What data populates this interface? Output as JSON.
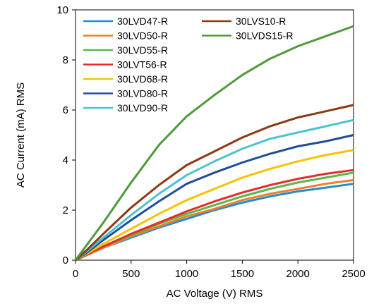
{
  "chart_data": {
    "type": "line",
    "xlabel": "AC Voltage (V) RMS",
    "ylabel": "AC Current (mA) RMS",
    "xlim": [
      0,
      2500
    ],
    "ylim": [
      0,
      10
    ],
    "xticks": [
      "0",
      "500",
      "1000",
      "1500",
      "2000",
      "2500"
    ],
    "yticks": [
      "0",
      "2",
      "4",
      "6",
      "8",
      "10"
    ],
    "grid": false,
    "legend_placement": "top-left, two columns",
    "series": [
      {
        "name": "30LVD47-R",
        "color": "#1f8fd0",
        "x": [
          0,
          100,
          250,
          500,
          750,
          1000,
          1250,
          1500,
          1750,
          2000,
          2250,
          2500
        ],
        "y": [
          0,
          0.2,
          0.5,
          0.9,
          1.3,
          1.65,
          2.0,
          2.3,
          2.55,
          2.75,
          2.9,
          3.05
        ]
      },
      {
        "name": "30LVD50-R",
        "color": "#f07d2a",
        "x": [
          0,
          100,
          250,
          500,
          750,
          1000,
          1250,
          1500,
          1750,
          2000,
          2250,
          2500
        ],
        "y": [
          0,
          0.2,
          0.5,
          0.95,
          1.35,
          1.75,
          2.05,
          2.4,
          2.65,
          2.85,
          3.05,
          3.2
        ]
      },
      {
        "name": "30LVD55-R",
        "color": "#57b947",
        "x": [
          0,
          100,
          250,
          500,
          750,
          1000,
          1250,
          1500,
          1750,
          2000,
          2250,
          2500
        ],
        "y": [
          0,
          0.22,
          0.55,
          1.0,
          1.45,
          1.85,
          2.2,
          2.55,
          2.85,
          3.1,
          3.3,
          3.5
        ]
      },
      {
        "name": "30LVT56-R",
        "color": "#e52b2b",
        "x": [
          0,
          100,
          250,
          500,
          750,
          1000,
          1250,
          1500,
          1750,
          2000,
          2250,
          2500
        ],
        "y": [
          0,
          0.22,
          0.55,
          1.05,
          1.5,
          1.95,
          2.35,
          2.7,
          3.0,
          3.25,
          3.45,
          3.6
        ]
      },
      {
        "name": "30LVD68-R",
        "color": "#f5c400",
        "x": [
          0,
          100,
          250,
          500,
          750,
          1000,
          1250,
          1500,
          1750,
          2000,
          2250,
          2500
        ],
        "y": [
          0,
          0.25,
          0.65,
          1.25,
          1.85,
          2.4,
          2.85,
          3.3,
          3.65,
          3.95,
          4.2,
          4.4
        ]
      },
      {
        "name": "30LVD80-R",
        "color": "#1f4e99",
        "x": [
          0,
          100,
          250,
          500,
          750,
          1000,
          1250,
          1500,
          1750,
          2000,
          2250,
          2500
        ],
        "y": [
          0,
          0.3,
          0.8,
          1.6,
          2.35,
          3.05,
          3.5,
          3.9,
          4.25,
          4.55,
          4.75,
          5.0
        ]
      },
      {
        "name": "30LVD90-R",
        "color": "#4cc3d1",
        "x": [
          0,
          100,
          250,
          500,
          750,
          1000,
          1250,
          1500,
          1750,
          2000,
          2250,
          2500
        ],
        "y": [
          0,
          0.35,
          0.9,
          1.8,
          2.65,
          3.4,
          3.95,
          4.45,
          4.85,
          5.1,
          5.35,
          5.6
        ]
      },
      {
        "name": "30LVS10-R",
        "color": "#8b3a14",
        "x": [
          0,
          100,
          250,
          500,
          750,
          1000,
          1250,
          1500,
          1750,
          2000,
          2250,
          2500
        ],
        "y": [
          0,
          0.4,
          1.05,
          2.1,
          3.0,
          3.8,
          4.35,
          4.9,
          5.35,
          5.7,
          5.95,
          6.2
        ]
      },
      {
        "name": "30LVDS15-R",
        "color": "#4f9a3a",
        "x": [
          0,
          100,
          250,
          500,
          750,
          1000,
          1250,
          1500,
          1750,
          2000,
          2250,
          2500
        ],
        "y": [
          0,
          0.6,
          1.5,
          3.1,
          4.6,
          5.75,
          6.6,
          7.4,
          8.05,
          8.55,
          8.95,
          9.35
        ]
      }
    ]
  }
}
